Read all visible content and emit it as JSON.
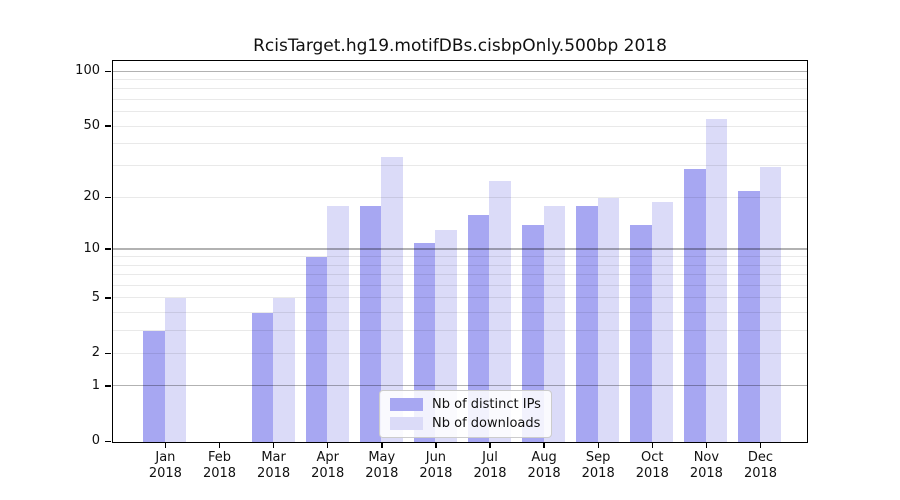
{
  "chart_data": {
    "type": "bar",
    "title": "RcisTarget.hg19.motifDBs.cisbpOnly.500bp 2018",
    "year": "2018",
    "categories": [
      "Jan",
      "Feb",
      "Mar",
      "Apr",
      "May",
      "Jun",
      "Jul",
      "Aug",
      "Sep",
      "Oct",
      "Nov",
      "Dec"
    ],
    "series": [
      {
        "name": "Nb of distinct IPs",
        "color": "#a7a7f2",
        "values": [
          3,
          0,
          4,
          9,
          18,
          11,
          16,
          14,
          18,
          14,
          29,
          22
        ]
      },
      {
        "name": "Nb of downloads",
        "color": "#dbdbf8",
        "values": [
          5,
          0,
          5,
          18,
          34,
          13,
          25,
          18,
          20,
          19,
          55,
          30
        ]
      }
    ],
    "xlabel": "",
    "ylabel": "",
    "yscale": "log1p",
    "yticks": [
      0,
      1,
      2,
      5,
      10,
      20,
      50,
      100
    ],
    "ylim": [
      0,
      113
    ],
    "grid": "horizontal",
    "legend_position": "lower-center"
  },
  "colors": {
    "bar_primary": "#a7a7f2",
    "bar_secondary": "#dbdbf8",
    "grid_major": "#bdbdbd",
    "grid_minor": "#ededed",
    "axis": "#000000",
    "background": "#ffffff"
  }
}
